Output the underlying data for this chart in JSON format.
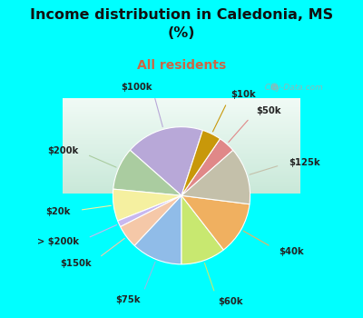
{
  "title": "Income distribution in Caledonia, MS\n(%)",
  "subtitle": "All residents",
  "title_color": "#111111",
  "subtitle_color": "#cc6644",
  "bg_top": "#00ffff",
  "bg_chart_gradient_top": "#e8f5f0",
  "bg_chart_gradient_bottom": "#d0eedd",
  "watermark": "  City-Data.com",
  "labels": [
    "$100k",
    "$200k",
    "$20k",
    "> $200k",
    "$150k",
    "$75k",
    "$60k",
    "$40k",
    "$125k",
    "$50k",
    "$10k"
  ],
  "values": [
    18.5,
    10.0,
    7.5,
    1.5,
    5.5,
    12.0,
    10.5,
    12.5,
    13.5,
    4.0,
    4.5
  ],
  "colors": [
    "#b8a8d8",
    "#aacca0",
    "#f5f0a0",
    "#c8b8f0",
    "#f5c8a8",
    "#90bce8",
    "#c8e870",
    "#f0b060",
    "#c4c0aa",
    "#e08888",
    "#c8980a"
  ],
  "label_color": "#222222",
  "startangle": 72
}
